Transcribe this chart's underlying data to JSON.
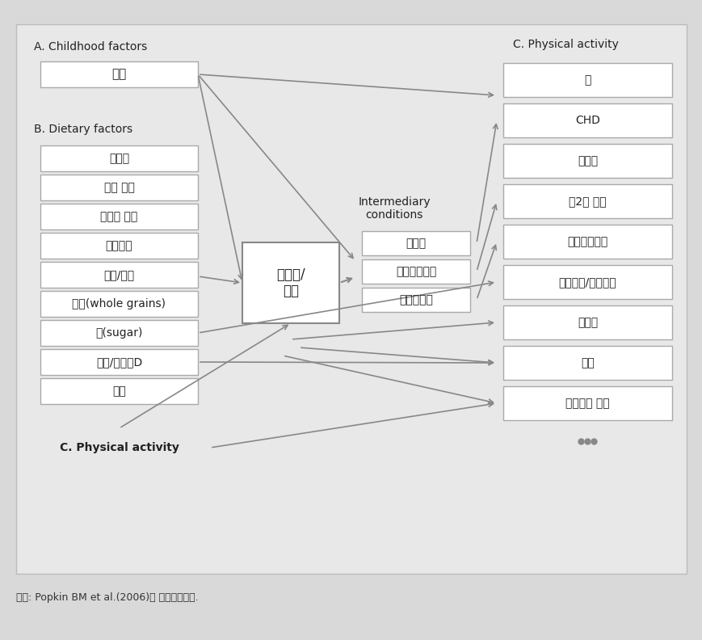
{
  "bg_color": "#d9d9d9",
  "box_color": "#ffffff",
  "box_edge_color": "#999999",
  "dashed_box_color": "#999999",
  "arrow_color": "#888888",
  "text_color": "#333333",
  "title_color": "#222222",
  "fig_width": 8.7,
  "fig_height": 7.92,
  "section_A_label": "A. Childhood factors",
  "section_B_label": "B. Dietary factors",
  "section_C_left_label": "C. Physical activity",
  "section_C_right_label": "C. Physical activity",
  "childhood_items": [
    "발육"
  ],
  "dietary_items": [
    "칼로리",
    "포화 지방",
    "트렌스 지방",
    "식이섬유",
    "과일/채소",
    "곡류(whole grains)",
    "당(sugar)",
    "칼슘/비타민D",
    "음주"
  ],
  "obesity_label": "과체중/\n비만",
  "intermediary_label": "Intermediary\nconditions",
  "intermediary_items": [
    "고혈압",
    "이상자질혈증",
    "인슐린저항"
  ],
  "outcome_items": [
    "암",
    "CHD",
    "뇌졸증",
    "제2형 당뇨",
    "담낭담석질환",
    "골다공증/골관절염",
    "폐색전",
    "천식",
    "고혈압성 질환"
  ],
  "footnote": "자료: Popkin BM et al.(2006)을 수정ㆍ보완함."
}
